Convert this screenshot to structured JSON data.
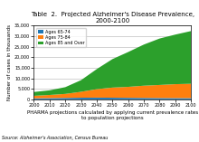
{
  "chart_data": {
    "type": "area",
    "stacked": true,
    "title": "Table  2.  Projected Alzheimer's Disease Prevalence, 2000-2100",
    "ylabel": "Number of cases in thousands",
    "xlabel": "PHARMA projections calculated by applying current prevalence rates to population projections",
    "annotations": [
      "Source: Alzheimer's Association, Census Bureau"
    ],
    "x": [
      2000,
      2010,
      2020,
      2030,
      2040,
      2050,
      2060,
      2070,
      2080,
      2090,
      2100
    ],
    "series": [
      {
        "name": "Ages 65-74",
        "values": [
          500,
          600,
          700,
          800,
          850,
          800,
          750,
          700,
          650,
          620,
          600
        ]
      },
      {
        "name": "Ages 75-84",
        "values": [
          1200,
          1500,
          1900,
          2800,
          4000,
          4800,
          5200,
          5800,
          6200,
          6600,
          6800
        ]
      },
      {
        "name": "Ages 85 and Over",
        "values": [
          1800,
          2200,
          3200,
          5500,
          9500,
          13500,
          16500,
          19500,
          22000,
          23500,
          25000
        ]
      }
    ],
    "xlim": [
      2000,
      2100
    ],
    "xticks": [
      2000,
      2010,
      2020,
      2030,
      2040,
      2050,
      2060,
      2070,
      2080,
      2090,
      2100
    ],
    "ylim": [
      0,
      35000
    ],
    "yticks": [
      0,
      {
        "value": 5000,
        "label": "5,000"
      },
      {
        "value": 10000,
        "label": "10,000"
      },
      {
        "value": 15000,
        "label": "15,000"
      },
      {
        "value": 20000,
        "label": "20,000"
      },
      {
        "value": 25000,
        "label": "25,000"
      },
      {
        "value": 30000,
        "label": "30,000"
      },
      {
        "value": 35000,
        "label": "35,000"
      }
    ],
    "grid": true,
    "legend": "upper left"
  }
}
